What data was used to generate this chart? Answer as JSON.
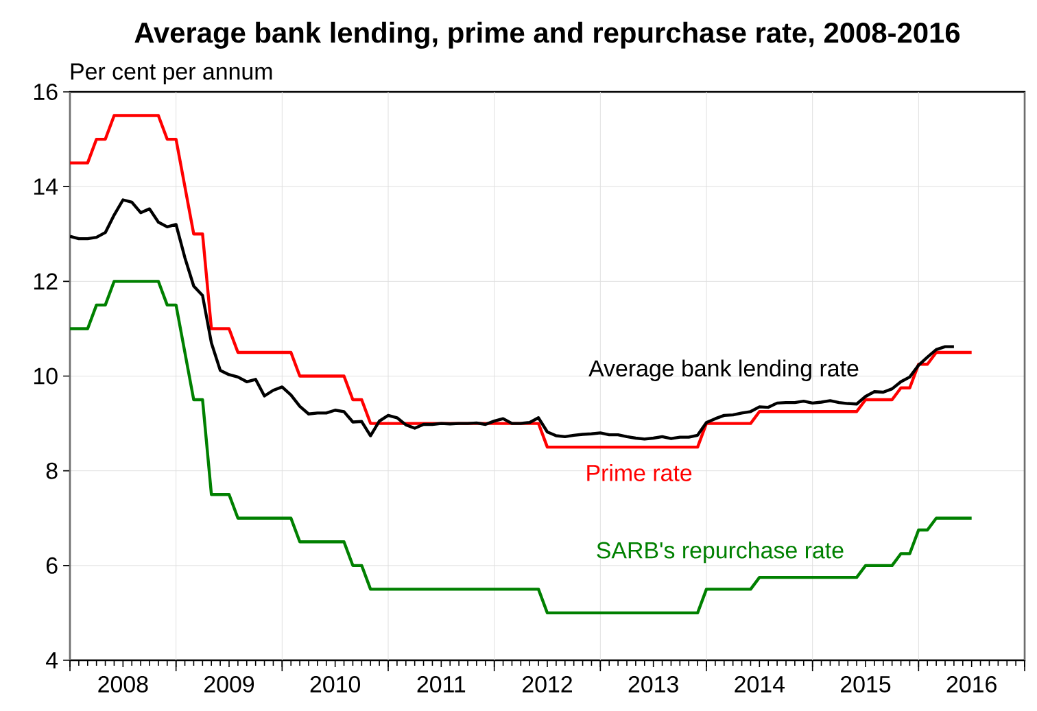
{
  "chart_data": {
    "type": "line",
    "title": "Average bank lending, prime and repurchase rate, 2008-2016",
    "ylabel": "Per cent per annum",
    "xlim": [
      "2008-01",
      "2017-01"
    ],
    "ylim": [
      4,
      16
    ],
    "yticks": [
      4,
      6,
      8,
      10,
      12,
      14,
      16
    ],
    "xticks": [
      {
        "value": "2008-01",
        "label": null
      },
      {
        "value": "2008-07",
        "label": "2008"
      },
      {
        "value": "2009-01",
        "label": null
      },
      {
        "value": "2009-07",
        "label": "2009"
      },
      {
        "value": "2010-01",
        "label": null
      },
      {
        "value": "2010-07",
        "label": "2010"
      },
      {
        "value": "2011-01",
        "label": null
      },
      {
        "value": "2011-07",
        "label": "2011"
      },
      {
        "value": "2012-01",
        "label": null
      },
      {
        "value": "2012-07",
        "label": "2012"
      },
      {
        "value": "2013-01",
        "label": null
      },
      {
        "value": "2013-07",
        "label": "2013"
      },
      {
        "value": "2014-01",
        "label": null
      },
      {
        "value": "2014-07",
        "label": "2014"
      },
      {
        "value": "2015-01",
        "label": null
      },
      {
        "value": "2015-07",
        "label": "2015"
      },
      {
        "value": "2016-01",
        "label": null
      },
      {
        "value": "2016-07",
        "label": "2016"
      },
      {
        "value": "2017-01",
        "label": null
      }
    ],
    "grid": true,
    "marker": "none",
    "line_style": "solid",
    "series": [
      {
        "name": "Average bank lending rate",
        "color": "#000000",
        "x": [
          "2008-01",
          "2008-02",
          "2008-03",
          "2008-04",
          "2008-05",
          "2008-06",
          "2008-07",
          "2008-08",
          "2008-09",
          "2008-10",
          "2008-11",
          "2008-12",
          "2009-01",
          "2009-02",
          "2009-03",
          "2009-04",
          "2009-05",
          "2009-06",
          "2009-07",
          "2009-08",
          "2009-09",
          "2009-10",
          "2009-11",
          "2009-12",
          "2010-01",
          "2010-02",
          "2010-03",
          "2010-04",
          "2010-05",
          "2010-06",
          "2010-07",
          "2010-08",
          "2010-09",
          "2010-10",
          "2010-11",
          "2010-12",
          "2011-01",
          "2011-02",
          "2011-03",
          "2011-04",
          "2011-05",
          "2011-06",
          "2011-07",
          "2011-08",
          "2011-09",
          "2011-10",
          "2011-11",
          "2011-12",
          "2012-01",
          "2012-02",
          "2012-03",
          "2012-04",
          "2012-05",
          "2012-06",
          "2012-07",
          "2012-08",
          "2012-09",
          "2012-10",
          "2012-11",
          "2012-12",
          "2013-01",
          "2013-02",
          "2013-03",
          "2013-04",
          "2013-05",
          "2013-06",
          "2013-07",
          "2013-08",
          "2013-09",
          "2013-10",
          "2013-11",
          "2013-12",
          "2014-01",
          "2014-02",
          "2014-03",
          "2014-04",
          "2014-05",
          "2014-06",
          "2014-07",
          "2014-08",
          "2014-09",
          "2014-10",
          "2014-11",
          "2014-12",
          "2015-01",
          "2015-02",
          "2015-03",
          "2015-04",
          "2015-05",
          "2015-06",
          "2015-07",
          "2015-08",
          "2015-09",
          "2015-10",
          "2015-11",
          "2015-12",
          "2016-01",
          "2016-02",
          "2016-03",
          "2016-04",
          "2016-05"
        ],
        "values": [
          12.95,
          12.9,
          12.9,
          12.93,
          13.03,
          13.4,
          13.72,
          13.67,
          13.45,
          13.53,
          13.25,
          13.15,
          13.2,
          12.5,
          11.9,
          11.7,
          10.7,
          10.12,
          10.03,
          9.98,
          9.88,
          9.93,
          9.58,
          9.7,
          9.77,
          9.6,
          9.36,
          9.2,
          9.22,
          9.22,
          9.28,
          9.25,
          9.03,
          9.04,
          8.74,
          9.05,
          9.17,
          9.12,
          8.97,
          8.9,
          8.98,
          8.98,
          9.0,
          8.99,
          9.0,
          9.0,
          9.01,
          8.98,
          9.05,
          9.1,
          9.0,
          9.0,
          9.02,
          9.12,
          8.82,
          8.74,
          8.72,
          8.75,
          8.77,
          8.78,
          8.8,
          8.76,
          8.76,
          8.72,
          8.69,
          8.67,
          8.69,
          8.72,
          8.68,
          8.71,
          8.71,
          8.75,
          9.02,
          9.1,
          9.17,
          9.18,
          9.22,
          9.25,
          9.35,
          9.34,
          9.43,
          9.44,
          9.44,
          9.47,
          9.43,
          9.45,
          9.48,
          9.44,
          9.42,
          9.41,
          9.57,
          9.67,
          9.66,
          9.73,
          9.88,
          9.98,
          10.23,
          10.4,
          10.56,
          10.62,
          10.62
        ]
      },
      {
        "name": "Prime rate",
        "color": "#ff0000",
        "x": [
          "2008-01",
          "2008-02",
          "2008-03",
          "2008-04",
          "2008-05",
          "2008-06",
          "2008-07",
          "2008-08",
          "2008-09",
          "2008-10",
          "2008-11",
          "2008-12",
          "2009-01",
          "2009-02",
          "2009-03",
          "2009-04",
          "2009-05",
          "2009-06",
          "2009-07",
          "2009-08",
          "2009-09",
          "2009-10",
          "2009-11",
          "2009-12",
          "2010-01",
          "2010-02",
          "2010-03",
          "2010-04",
          "2010-05",
          "2010-06",
          "2010-07",
          "2010-08",
          "2010-09",
          "2010-10",
          "2010-11",
          "2010-12",
          "2011-01",
          "2011-02",
          "2011-03",
          "2011-04",
          "2011-05",
          "2011-06",
          "2011-07",
          "2011-08",
          "2011-09",
          "2011-10",
          "2011-11",
          "2011-12",
          "2012-01",
          "2012-02",
          "2012-03",
          "2012-04",
          "2012-05",
          "2012-06",
          "2012-07",
          "2012-08",
          "2012-09",
          "2012-10",
          "2012-11",
          "2012-12",
          "2013-01",
          "2013-02",
          "2013-03",
          "2013-04",
          "2013-05",
          "2013-06",
          "2013-07",
          "2013-08",
          "2013-09",
          "2013-10",
          "2013-11",
          "2013-12",
          "2014-01",
          "2014-02",
          "2014-03",
          "2014-04",
          "2014-05",
          "2014-06",
          "2014-07",
          "2014-08",
          "2014-09",
          "2014-10",
          "2014-11",
          "2014-12",
          "2015-01",
          "2015-02",
          "2015-03",
          "2015-04",
          "2015-05",
          "2015-06",
          "2015-07",
          "2015-08",
          "2015-09",
          "2015-10",
          "2015-11",
          "2015-12",
          "2016-01",
          "2016-02",
          "2016-03",
          "2016-04",
          "2016-05",
          "2016-06",
          "2016-07"
        ],
        "values": [
          14.5,
          14.5,
          14.5,
          15,
          15,
          15.5,
          15.5,
          15.5,
          15.5,
          15.5,
          15.5,
          15,
          15,
          14,
          13,
          13,
          11,
          11,
          11,
          10.5,
          10.5,
          10.5,
          10.5,
          10.5,
          10.5,
          10.5,
          10,
          10,
          10,
          10,
          10,
          10,
          9.5,
          9.5,
          9,
          9,
          9,
          9,
          9,
          9,
          9,
          9,
          9,
          9,
          9,
          9,
          9,
          9,
          9,
          9,
          9,
          9,
          9,
          9,
          8.5,
          8.5,
          8.5,
          8.5,
          8.5,
          8.5,
          8.5,
          8.5,
          8.5,
          8.5,
          8.5,
          8.5,
          8.5,
          8.5,
          8.5,
          8.5,
          8.5,
          8.5,
          9,
          9,
          9,
          9,
          9,
          9,
          9.25,
          9.25,
          9.25,
          9.25,
          9.25,
          9.25,
          9.25,
          9.25,
          9.25,
          9.25,
          9.25,
          9.25,
          9.5,
          9.5,
          9.5,
          9.5,
          9.75,
          9.75,
          10.25,
          10.25,
          10.5,
          10.5,
          10.5,
          10.5,
          10.5
        ]
      },
      {
        "name": "SARB's repurchase rate",
        "color": "#008000",
        "x": [
          "2008-01",
          "2008-02",
          "2008-03",
          "2008-04",
          "2008-05",
          "2008-06",
          "2008-07",
          "2008-08",
          "2008-09",
          "2008-10",
          "2008-11",
          "2008-12",
          "2009-01",
          "2009-02",
          "2009-03",
          "2009-04",
          "2009-05",
          "2009-06",
          "2009-07",
          "2009-08",
          "2009-09",
          "2009-10",
          "2009-11",
          "2009-12",
          "2010-01",
          "2010-02",
          "2010-03",
          "2010-04",
          "2010-05",
          "2010-06",
          "2010-07",
          "2010-08",
          "2010-09",
          "2010-10",
          "2010-11",
          "2010-12",
          "2011-01",
          "2011-02",
          "2011-03",
          "2011-04",
          "2011-05",
          "2011-06",
          "2011-07",
          "2011-08",
          "2011-09",
          "2011-10",
          "2011-11",
          "2011-12",
          "2012-01",
          "2012-02",
          "2012-03",
          "2012-04",
          "2012-05",
          "2012-06",
          "2012-07",
          "2012-08",
          "2012-09",
          "2012-10",
          "2012-11",
          "2012-12",
          "2013-01",
          "2013-02",
          "2013-03",
          "2013-04",
          "2013-05",
          "2013-06",
          "2013-07",
          "2013-08",
          "2013-09",
          "2013-10",
          "2013-11",
          "2013-12",
          "2014-01",
          "2014-02",
          "2014-03",
          "2014-04",
          "2014-05",
          "2014-06",
          "2014-07",
          "2014-08",
          "2014-09",
          "2014-10",
          "2014-11",
          "2014-12",
          "2015-01",
          "2015-02",
          "2015-03",
          "2015-04",
          "2015-05",
          "2015-06",
          "2015-07",
          "2015-08",
          "2015-09",
          "2015-10",
          "2015-11",
          "2015-12",
          "2016-01",
          "2016-02",
          "2016-03",
          "2016-04",
          "2016-05",
          "2016-06",
          "2016-07"
        ],
        "values": [
          11,
          11,
          11,
          11.5,
          11.5,
          12,
          12,
          12,
          12,
          12,
          12,
          11.5,
          11.5,
          10.5,
          9.5,
          9.5,
          7.5,
          7.5,
          7.5,
          7,
          7,
          7,
          7,
          7,
          7,
          7,
          6.5,
          6.5,
          6.5,
          6.5,
          6.5,
          6.5,
          6,
          6,
          5.5,
          5.5,
          5.5,
          5.5,
          5.5,
          5.5,
          5.5,
          5.5,
          5.5,
          5.5,
          5.5,
          5.5,
          5.5,
          5.5,
          5.5,
          5.5,
          5.5,
          5.5,
          5.5,
          5.5,
          5,
          5,
          5,
          5,
          5,
          5,
          5,
          5,
          5,
          5,
          5,
          5,
          5,
          5,
          5,
          5,
          5,
          5,
          5.5,
          5.5,
          5.5,
          5.5,
          5.5,
          5.5,
          5.75,
          5.75,
          5.75,
          5.75,
          5.75,
          5.75,
          5.75,
          5.75,
          5.75,
          5.75,
          5.75,
          5.75,
          6,
          6,
          6,
          6,
          6.25,
          6.25,
          6.75,
          6.75,
          7,
          7,
          7,
          7,
          7
        ]
      }
    ]
  }
}
